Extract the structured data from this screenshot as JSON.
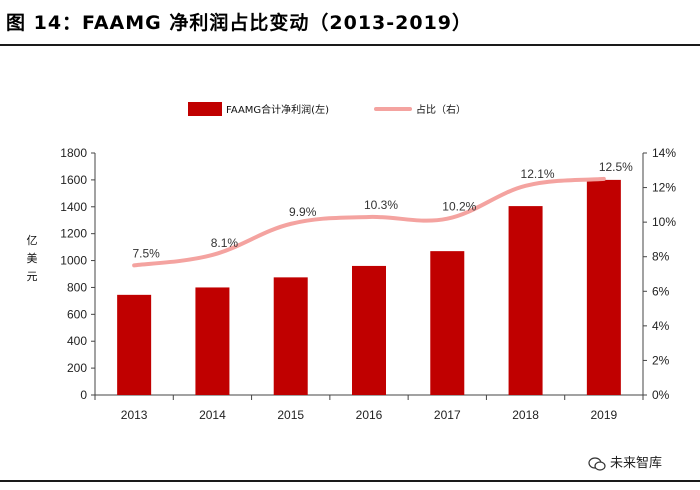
{
  "figure": {
    "title": "图 14：FAAMG 净利润占比变动（2013-2019）",
    "watermark": "未来智库"
  },
  "chart_data": {
    "type": "bar",
    "categories": [
      "2013",
      "2014",
      "2015",
      "2016",
      "2017",
      "2018",
      "2019"
    ],
    "series": [
      {
        "name": "FAAMG合计净利润(左)",
        "type": "bar",
        "axis": "left",
        "values": [
          745,
          800,
          875,
          960,
          1070,
          1405,
          1600
        ],
        "color": "#c00000"
      },
      {
        "name": "占比（右）",
        "type": "line",
        "axis": "right",
        "values": [
          7.5,
          8.1,
          9.9,
          10.3,
          10.2,
          12.1,
          12.5
        ],
        "labels": [
          "7.5%",
          "8.1%",
          "9.9%",
          "10.3%",
          "10.2%",
          "12.1%",
          "12.5%"
        ],
        "color": "#f4a3a0"
      }
    ],
    "ylabel": "亿美元",
    "ylim": [
      0,
      1800
    ],
    "yticks": [
      "0",
      "200",
      "400",
      "600",
      "800",
      "1000",
      "1200",
      "1400",
      "1600",
      "1800"
    ],
    "y2lim": [
      0,
      14
    ],
    "y2ticks": [
      "0%",
      "2%",
      "4%",
      "6%",
      "8%",
      "10%",
      "12%",
      "14%"
    ],
    "grid": false,
    "legend_position": "top"
  }
}
